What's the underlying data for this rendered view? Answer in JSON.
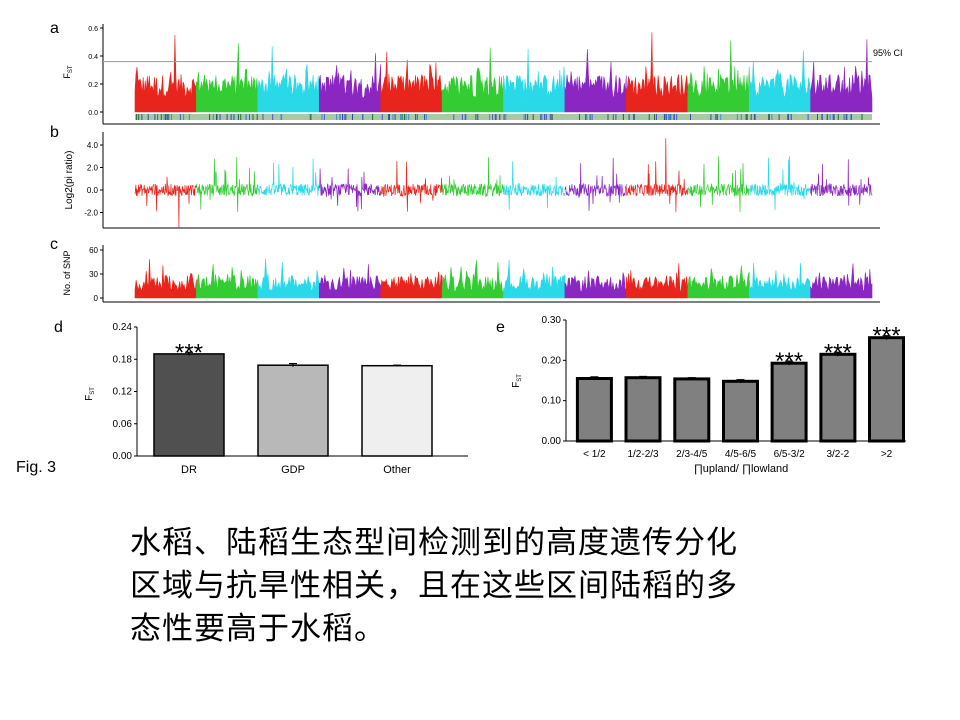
{
  "figure_label": "Fig. 3",
  "caption_lines": [
    "水稻、陆稻生态型间检测到的高度遗传分化",
    "区域与抗旱性相关，且在这些区间陆稻的多",
    "态性要高于水稻。"
  ],
  "colors": {
    "red": "#e8251c",
    "green": "#33cc33",
    "cyan": "#29d9e8",
    "purple": "#8a27c2",
    "bar_dark": "#505050",
    "bar_mid": "#b8b8b8",
    "bar_light": "#efefef",
    "bar_e": "#808080"
  },
  "chart_data": [
    {
      "panel": "a",
      "type": "area",
      "ylabel": "F",
      "ylabel_sub": "ST",
      "yticks": [
        "0.6",
        "0.4",
        "0.2",
        "0.0"
      ],
      "ylim": [
        0,
        0.6
      ],
      "threshold": 0.36,
      "threshold_label": "95% CI",
      "segments": [
        "red",
        "green",
        "cyan",
        "purple",
        "red",
        "green",
        "cyan",
        "purple",
        "red",
        "green",
        "cyan",
        "purple"
      ],
      "peaks": [
        0.55,
        0.49,
        0.47,
        0.42,
        0.43,
        0.46,
        0.45,
        0.45,
        0.57,
        0.51,
        0.44,
        0.52
      ]
    },
    {
      "panel": "b",
      "type": "line",
      "ylabel": "Log2(pi ratio)",
      "yticks": [
        "4.0",
        "2.0",
        "0.0",
        "-2.0"
      ],
      "ylim": [
        -3.5,
        5
      ],
      "segments": [
        "red",
        "green",
        "cyan",
        "purple",
        "red",
        "green",
        "cyan",
        "purple",
        "red",
        "green",
        "cyan",
        "purple"
      ]
    },
    {
      "panel": "c",
      "type": "area",
      "ylabel": "No. of SNP",
      "yticks": [
        "60",
        "30",
        "0"
      ],
      "ylim": [
        0,
        60
      ],
      "segments": [
        "red",
        "green",
        "cyan",
        "purple",
        "red",
        "green",
        "cyan",
        "purple",
        "red",
        "green",
        "cyan",
        "purple"
      ]
    },
    {
      "panel": "d",
      "type": "bar",
      "ylabel": "F",
      "ylabel_sub": "ST",
      "categories": [
        "DR",
        "GDP",
        "Other"
      ],
      "values": [
        0.19,
        0.169,
        0.168
      ],
      "errors": [
        0.003,
        0.003,
        0.001
      ],
      "bar_colors": [
        "bar_dark",
        "bar_mid",
        "bar_light"
      ],
      "significance": [
        "***",
        "",
        ""
      ],
      "ylim": [
        0,
        0.24
      ],
      "yticks": [
        "0.24",
        "0.18",
        "0.12",
        "0.06",
        "0.00"
      ]
    },
    {
      "panel": "e",
      "type": "bar",
      "ylabel": "F",
      "ylabel_sub": "ST",
      "xlabel": "∏upland/ ∏lowland",
      "categories": [
        "< 1/2",
        "1/2-2/3",
        "2/3-4/5",
        "4/5-6/5",
        "6/5-3/2",
        "3/2-2",
        ">2"
      ],
      "values": [
        0.155,
        0.157,
        0.154,
        0.148,
        0.193,
        0.215,
        0.256
      ],
      "errors": [
        0.004,
        0.003,
        0.003,
        0.004,
        0.005,
        0.005,
        0.005
      ],
      "significance": [
        "",
        "",
        "",
        "",
        "***",
        "***",
        "***"
      ],
      "ylim": [
        0,
        0.3
      ],
      "yticks": [
        "0.30",
        "0.20",
        "0.10",
        "0.00"
      ]
    }
  ]
}
